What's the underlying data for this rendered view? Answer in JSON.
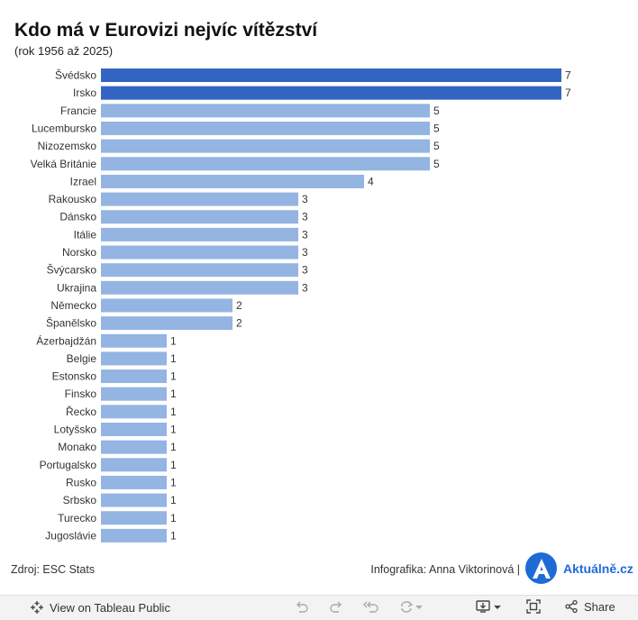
{
  "header": {
    "title": "Kdo má v Eurovizi nejvíc vítězství",
    "subtitle": "(rok 1956 až 2025)"
  },
  "chart_data": {
    "type": "bar",
    "orientation": "horizontal",
    "categories": [
      "Švédsko",
      "Irsko",
      "Francie",
      "Lucembursko",
      "Nizozemsko",
      "Velká Británie",
      "Izrael",
      "Rakousko",
      "Dánsko",
      "Itálie",
      "Norsko",
      "Švýcarsko",
      "Ukrajina",
      "Německo",
      "Španělsko",
      "Ázerbajdžán",
      "Belgie",
      "Estonsko",
      "Finsko",
      "Řecko",
      "Lotyšsko",
      "Monako",
      "Portugalsko",
      "Rusko",
      "Srbsko",
      "Turecko",
      "Jugoslávie"
    ],
    "values": [
      7,
      7,
      5,
      5,
      5,
      5,
      4,
      3,
      3,
      3,
      3,
      3,
      3,
      2,
      2,
      1,
      1,
      1,
      1,
      1,
      1,
      1,
      1,
      1,
      1,
      1,
      1
    ],
    "xlim": [
      0,
      7
    ],
    "grid": false,
    "highlight_color": "#3366c2",
    "bar_color": "#94b4e2",
    "highlight_min_value": 7
  },
  "footer": {
    "source": "Zdroj: ESC Stats",
    "credit": "Infografika: Anna Viktorinová |",
    "logo_letter": "A",
    "logo_text": "Aktuálně.cz"
  },
  "toolbar": {
    "view_label": "View on Tableau Public",
    "share_label": "Share",
    "icons": [
      "tableau-icon",
      "undo-icon",
      "redo-icon",
      "revert-icon",
      "refresh-icon",
      "download-icon",
      "fullscreen-icon",
      "share-icon"
    ]
  }
}
